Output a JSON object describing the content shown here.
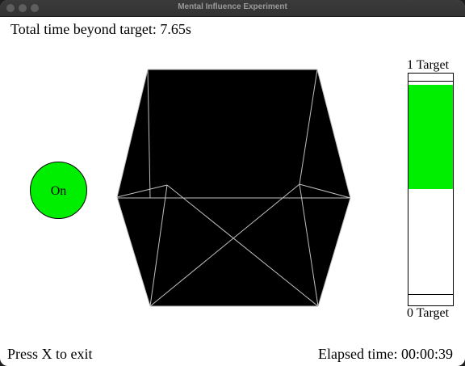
{
  "window": {
    "title": "Mental Influence Experiment"
  },
  "header": {
    "total_time_label": "Total time beyond target: 7.65s"
  },
  "status": {
    "label": "On",
    "color": "#00ee00"
  },
  "gauge": {
    "top_label": "1 Target",
    "bottom_label": "0 Target",
    "fill_from": 0.5,
    "fill_to": 0.95,
    "top_target_level": 0.97,
    "bottom_target_level": 0.05,
    "fill_color": "#00ee00"
  },
  "footer": {
    "exit_hint": "Press X to exit",
    "elapsed_label": "Elapsed time: 00:00:39"
  }
}
